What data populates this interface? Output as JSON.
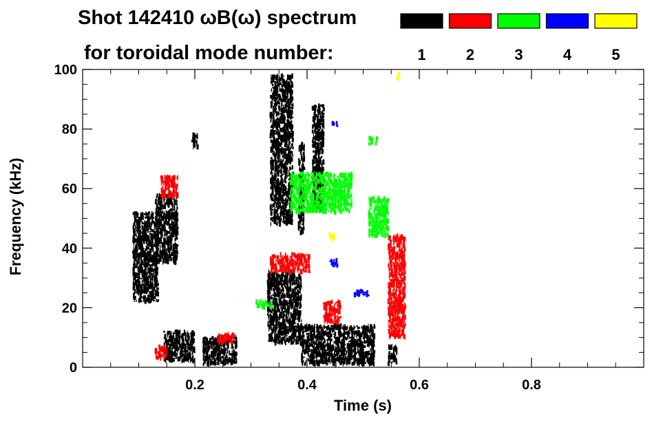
{
  "chart_data": {
    "type": "heatmap",
    "title": "Shot 142410 ωB(ω) spectrum",
    "subtitle": "for toroidal mode number:",
    "xlabel": "Time (s)",
    "ylabel": "Frequency (kHz)",
    "xlim": [
      0.0,
      1.0
    ],
    "ylim": [
      0,
      100
    ],
    "x_ticks": [
      0.2,
      0.4,
      0.6,
      0.8
    ],
    "x_tick_labels": [
      "0.2",
      "0.4",
      "0.6",
      "0.8"
    ],
    "y_ticks": [
      0,
      20,
      40,
      60,
      80,
      100
    ],
    "y_tick_labels": [
      "0",
      "20",
      "40",
      "60",
      "80",
      "100"
    ],
    "grid": false,
    "legend": {
      "placement": "top-right",
      "entries": [
        {
          "label": "1",
          "color": "#000000"
        },
        {
          "label": "2",
          "color": "#ff0000"
        },
        {
          "label": "3",
          "color": "#00ff00"
        },
        {
          "label": "4",
          "color": "#0000ff"
        },
        {
          "label": "5",
          "color": "#ffff00"
        }
      ]
    },
    "series": [
      {
        "name": "1",
        "color": "#000000",
        "regions": [
          {
            "t": [
              0.09,
              0.135
            ],
            "f": [
              22,
              52
            ]
          },
          {
            "t": [
              0.13,
              0.17
            ],
            "f": [
              35,
              58
            ]
          },
          {
            "t": [
              0.195,
              0.205
            ],
            "f": [
              74,
              79
            ]
          },
          {
            "t": [
              0.215,
              0.275
            ],
            "f": [
              1,
              10
            ]
          },
          {
            "t": [
              0.145,
              0.2
            ],
            "f": [
              2,
              12
            ]
          },
          {
            "t": [
              0.33,
              0.39
            ],
            "f": [
              8,
              32
            ]
          },
          {
            "t": [
              0.335,
              0.375
            ],
            "f": [
              48,
              98
            ]
          },
          {
            "t": [
              0.385,
              0.395
            ],
            "f": [
              45,
              75
            ]
          },
          {
            "t": [
              0.39,
              0.52
            ],
            "f": [
              1,
              14
            ]
          },
          {
            "t": [
              0.41,
              0.43
            ],
            "f": [
              52,
              88
            ]
          },
          {
            "t": [
              0.545,
              0.56
            ],
            "f": [
              1,
              7
            ]
          }
        ]
      },
      {
        "name": "2",
        "color": "#ff0000",
        "regions": [
          {
            "t": [
              0.14,
              0.17
            ],
            "f": [
              57,
              64
            ]
          },
          {
            "t": [
              0.13,
              0.15
            ],
            "f": [
              3,
              7
            ]
          },
          {
            "t": [
              0.24,
              0.27
            ],
            "f": [
              8,
              11
            ]
          },
          {
            "t": [
              0.335,
              0.405
            ],
            "f": [
              32,
              38
            ]
          },
          {
            "t": [
              0.43,
              0.46
            ],
            "f": [
              15,
              22
            ]
          },
          {
            "t": [
              0.545,
              0.575
            ],
            "f": [
              10,
              44
            ]
          }
        ]
      },
      {
        "name": "3",
        "color": "#00ff00",
        "regions": [
          {
            "t": [
              0.37,
              0.48
            ],
            "f": [
              52,
              65
            ]
          },
          {
            "t": [
              0.51,
              0.545
            ],
            "f": [
              44,
              57
            ]
          },
          {
            "t": [
              0.51,
              0.525
            ],
            "f": [
              75,
              77
            ]
          },
          {
            "t": [
              0.31,
              0.34
            ],
            "f": [
              20,
              22
            ]
          }
        ]
      },
      {
        "name": "4",
        "color": "#0000ff",
        "regions": [
          {
            "t": [
              0.445,
              0.455
            ],
            "f": [
              81,
              82
            ]
          },
          {
            "t": [
              0.44,
              0.455
            ],
            "f": [
              34,
              36
            ]
          },
          {
            "t": [
              0.485,
              0.51
            ],
            "f": [
              24,
              26
            ]
          }
        ]
      },
      {
        "name": "5",
        "color": "#ffff00",
        "regions": [
          {
            "t": [
              0.44,
              0.45
            ],
            "f": [
              43,
              45
            ]
          },
          {
            "t": [
              0.56,
              0.565
            ],
            "f": [
              96,
              99
            ]
          }
        ]
      }
    ]
  }
}
